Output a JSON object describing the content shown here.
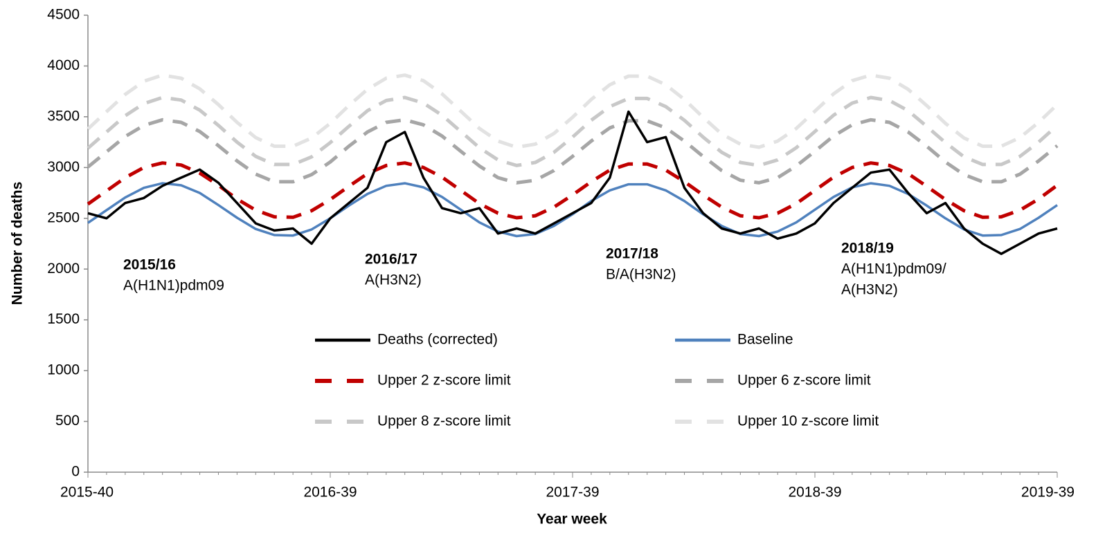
{
  "chart_data": {
    "type": "line",
    "xlabel": "Year week",
    "ylabel": "Number of deaths",
    "categories": [
      "2015-40",
      null,
      null,
      null,
      null,
      null,
      null,
      null,
      null,
      null,
      null,
      null,
      null,
      "2016-39",
      null,
      null,
      null,
      null,
      null,
      null,
      null,
      null,
      null,
      null,
      null,
      null,
      "2017-39",
      null,
      null,
      null,
      null,
      null,
      null,
      null,
      null,
      null,
      null,
      null,
      null,
      "2018-39",
      null,
      null,
      null,
      null,
      null,
      null,
      null,
      null,
      null,
      null,
      null,
      null,
      "2019-39"
    ],
    "ylim": [
      0,
      4500
    ],
    "yticks": [
      0,
      500,
      1000,
      1500,
      2000,
      2500,
      3000,
      3500,
      4000,
      4500
    ],
    "grid": false,
    "legend": "bottom",
    "series": [
      {
        "name": "Deaths (corrected)",
        "color": "#000000",
        "style": "solid",
        "values": [
          2550,
          2500,
          2650,
          2700,
          2820,
          2900,
          2980,
          2850,
          2650,
          2450,
          2380,
          2400,
          2250,
          2500,
          2650,
          2800,
          3250,
          3350,
          2900,
          2600,
          2550,
          2600,
          2350,
          2400,
          2350,
          2450,
          2550,
          2650,
          2900,
          3550,
          3250,
          3300,
          2800,
          2550,
          2400,
          2350,
          2400,
          2300,
          2350,
          2450,
          2650,
          2800,
          2950,
          2980,
          2750,
          2550,
          2650,
          2400,
          2250,
          2150,
          2250,
          2350,
          2400
        ]
      },
      {
        "name": "Baseline",
        "color": "#4f81bd",
        "style": "solid",
        "values": [
          2455,
          2580,
          2705,
          2800,
          2845,
          2825,
          2750,
          2630,
          2505,
          2395,
          2335,
          2330,
          2390,
          2500,
          2625,
          2740,
          2820,
          2845,
          2805,
          2710,
          2585,
          2460,
          2370,
          2325,
          2345,
          2425,
          2540,
          2670,
          2775,
          2835,
          2835,
          2775,
          2670,
          2540,
          2425,
          2345,
          2325,
          2370,
          2460,
          2585,
          2710,
          2805,
          2845,
          2820,
          2740,
          2625,
          2500,
          2390,
          2330,
          2335,
          2395,
          2505,
          2630
        ]
      },
      {
        "name": "Upper 2 z-score limit",
        "color": "#c00000",
        "style": "dashed",
        "values": [
          2640,
          2770,
          2900,
          3000,
          3045,
          3025,
          2945,
          2825,
          2690,
          2580,
          2515,
          2510,
          2575,
          2685,
          2815,
          2940,
          3020,
          3045,
          3000,
          2905,
          2775,
          2645,
          2550,
          2505,
          2525,
          2610,
          2730,
          2860,
          2975,
          3035,
          3035,
          2975,
          2860,
          2730,
          2610,
          2525,
          2505,
          2550,
          2645,
          2775,
          2905,
          3000,
          3045,
          3020,
          2940,
          2815,
          2685,
          2575,
          2510,
          2515,
          2580,
          2690,
          2825
        ]
      },
      {
        "name": "Upper 6 z-score limit",
        "color": "#a6a6a6",
        "style": "dashed",
        "values": [
          3005,
          3155,
          3305,
          3415,
          3470,
          3445,
          3355,
          3215,
          3065,
          2935,
          2860,
          2860,
          2930,
          3055,
          3210,
          3350,
          3445,
          3470,
          3420,
          3310,
          3160,
          3015,
          2900,
          2850,
          2875,
          2970,
          3110,
          3260,
          3390,
          3460,
          3460,
          3390,
          3260,
          3110,
          2970,
          2875,
          2850,
          2900,
          3015,
          3160,
          3310,
          3420,
          3470,
          3445,
          3350,
          3210,
          3055,
          2930,
          2860,
          2860,
          2935,
          3065,
          3215
        ]
      },
      {
        "name": "Upper 8 z-score limit",
        "color": "#c8c8c8",
        "style": "dashed",
        "values": [
          3190,
          3350,
          3510,
          3630,
          3690,
          3665,
          3565,
          3415,
          3250,
          3110,
          3030,
          3030,
          3105,
          3245,
          3405,
          3560,
          3660,
          3690,
          3635,
          3515,
          3355,
          3195,
          3075,
          3020,
          3050,
          3150,
          3300,
          3465,
          3600,
          3680,
          3680,
          3600,
          3465,
          3300,
          3150,
          3050,
          3020,
          3075,
          3195,
          3355,
          3515,
          3635,
          3690,
          3660,
          3560,
          3405,
          3245,
          3105,
          3030,
          3030,
          3110,
          3250,
          3415
        ]
      },
      {
        "name": "Upper 10 z-score limit",
        "color": "#e2e2e2",
        "style": "dashed",
        "values": [
          3380,
          3550,
          3720,
          3850,
          3910,
          3880,
          3775,
          3620,
          3445,
          3295,
          3210,
          3210,
          3290,
          3435,
          3610,
          3770,
          3880,
          3910,
          3855,
          3725,
          3555,
          3385,
          3260,
          3200,
          3230,
          3335,
          3495,
          3670,
          3815,
          3900,
          3900,
          3815,
          3670,
          3495,
          3330,
          3230,
          3200,
          3260,
          3385,
          3555,
          3725,
          3855,
          3910,
          3880,
          3770,
          3610,
          3435,
          3290,
          3210,
          3210,
          3295,
          3445,
          3620
        ]
      }
    ],
    "annotations": [
      {
        "title": "2015/16",
        "lines": [
          "A(H1N1)pdm09"
        ]
      },
      {
        "title": "2016/17",
        "lines": [
          "A(H3N2)"
        ]
      },
      {
        "title": "2017/18",
        "lines": [
          "B/A(H3N2)"
        ]
      },
      {
        "title": "2018/19",
        "lines": [
          "A(H1N1)pdm09/",
          "A(H3N2)"
        ]
      }
    ]
  }
}
